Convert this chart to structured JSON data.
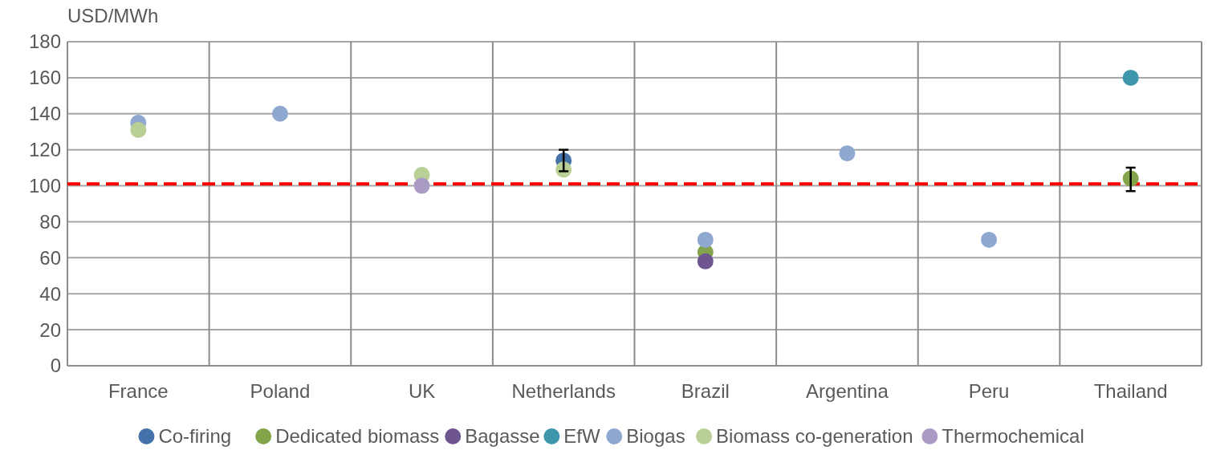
{
  "chart_data": {
    "type": "scatter",
    "ylabel": "USD/MWh",
    "categories": [
      "France",
      "Poland",
      "UK",
      "Netherlands",
      "Brazil",
      "Argentina",
      "Peru",
      "Thailand"
    ],
    "ylim": [
      0,
      180
    ],
    "yticks": [
      0,
      20,
      40,
      60,
      80,
      100,
      120,
      140,
      160,
      180
    ],
    "grid": true,
    "legend": "bottom",
    "marker": "circle",
    "ref_lines": [
      {
        "axis": "y",
        "value": 101,
        "color": "#ff0000",
        "line_style": "dashed"
      }
    ],
    "series": [
      {
        "name": "Co-firing",
        "color": "#4472a8",
        "values": [
          null,
          null,
          null,
          114,
          null,
          null,
          null,
          null
        ],
        "errors": [
          null,
          null,
          null,
          6,
          null,
          null,
          null,
          null
        ]
      },
      {
        "name": "Dedicated biomass",
        "color": "#84a44c",
        "values": [
          null,
          null,
          null,
          null,
          63,
          null,
          null,
          104
        ],
        "errors": [
          null,
          null,
          null,
          null,
          null,
          null,
          null,
          [
            97,
            110
          ]
        ]
      },
      {
        "name": "Bagasse",
        "color": "#6e5590",
        "values": [
          null,
          null,
          null,
          null,
          58,
          null,
          null,
          null
        ]
      },
      {
        "name": "EfW",
        "color": "#3d96ac",
        "values": [
          null,
          null,
          null,
          null,
          null,
          null,
          null,
          160
        ]
      },
      {
        "name": "Biogas",
        "color": "#8fa8d0",
        "values": [
          135,
          140,
          null,
          null,
          70,
          118,
          70,
          null
        ]
      },
      {
        "name": "Biomass co-generation",
        "color": "#b8cf96",
        "values": [
          131,
          null,
          106,
          109,
          null,
          null,
          null,
          null
        ]
      },
      {
        "name": "Thermochemical",
        "color": "#a99bc4",
        "values": [
          null,
          null,
          100,
          null,
          null,
          null,
          null,
          null
        ]
      }
    ]
  }
}
